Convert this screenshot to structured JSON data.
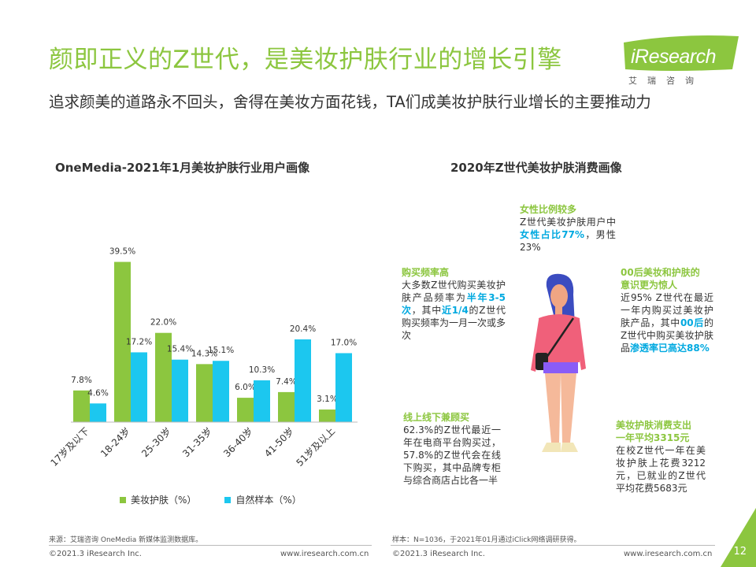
{
  "header": {
    "title": "颜即正义的Z世代，是美妆护肤行业的增长引擎",
    "subtitle": "追求颜美的道路永不回头，舍得在美妆方面花钱，TA们成美妆护肤行业增长的主要推动力"
  },
  "logo": {
    "text": "iResearch",
    "sub": "艾瑞咨询"
  },
  "left_section": {
    "title": "OneMedia-2021年1月美妆护肤行业用户画像"
  },
  "right_section": {
    "title": "2020年Z世代美妆护肤消费画像"
  },
  "chart_data": {
    "type": "bar",
    "title": "OneMedia-2021年1月美妆护肤行业用户画像",
    "categories": [
      "17岁及以下",
      "18-24岁",
      "25-30岁",
      "31-35岁",
      "36-40岁",
      "41-50岁",
      "51岁及以上"
    ],
    "series": [
      {
        "name": "美妆护肤（%）",
        "color": "#8cc63f",
        "values": [
          7.8,
          39.5,
          22.0,
          14.3,
          6.0,
          7.4,
          3.1
        ],
        "labels": [
          "7.8%",
          "39.5%",
          "22.0%",
          "14.3%",
          "6.0%",
          "7.4%",
          "3.1%"
        ]
      },
      {
        "name": "自然样本（%）",
        "color": "#1cc7ef",
        "values": [
          4.6,
          17.2,
          15.4,
          15.1,
          10.3,
          20.4,
          17.0
        ],
        "labels": [
          "4.6%",
          "17.2%",
          "15.4%",
          "15.1%",
          "10.3%",
          "20.4%",
          "17.0%"
        ]
      }
    ],
    "ylim": [
      0,
      40
    ],
    "grid": false
  },
  "legend": {
    "green": "美妆护肤（%）",
    "blue": "自然样本（%）"
  },
  "annotations": {
    "female": {
      "head": "女性比例较多",
      "t1": "Z世代美妆护肤用户中",
      "hl": "女性占比77%",
      "t2": "，男性23%"
    },
    "freq": {
      "head": "购买频率高",
      "t1": "大多数Z世代购买美妆护肤产品频率为",
      "hl1": "半年3-5次",
      "t2": "，其中",
      "hl2": "近1/4",
      "t3": "的Z世代购买频率为一月一次或多次"
    },
    "post00": {
      "head1": "00后美妆和护肤的",
      "head2": "意识更为惊人",
      "t1": "近95% Z世代在最近一年内购买过美妆护肤产品，其中",
      "hl1": "00后",
      "t2": "的Z世代中购买美妆护肤品",
      "hl2": "渗透率已高达88%"
    },
    "online": {
      "head": "线上线下兼顾买",
      "text": "62.3%的Z世代最近一年在电商平台购买过，57.8%的Z世代会在线下购买，其中品牌专柜与综合商店占比各一半"
    },
    "spend": {
      "head1": "美妆护肤消费支出",
      "head2": "一年平均3315元",
      "text": "在校Z世代一年在美妆护肤上花费3212元，已就业的Z世代平均花费5683元"
    }
  },
  "footer": {
    "source_left": "来源：艾瑞咨询 OneMedia 新媒体监测数据库。",
    "source_right": "样本：N=1036，于2021年01月通过iClick网络调研获得。",
    "copyright_left": "©2021.3 iResearch Inc.",
    "copyright_right": "©2021.3 iResearch Inc.",
    "url_left": "www.iresearch.com.cn",
    "url_right": "www.iresearch.com.cn",
    "page": "12"
  },
  "colors": {
    "accent": "#8cc63f",
    "blue": "#1cc7ef",
    "highlight_blue": "#00a9e0"
  }
}
